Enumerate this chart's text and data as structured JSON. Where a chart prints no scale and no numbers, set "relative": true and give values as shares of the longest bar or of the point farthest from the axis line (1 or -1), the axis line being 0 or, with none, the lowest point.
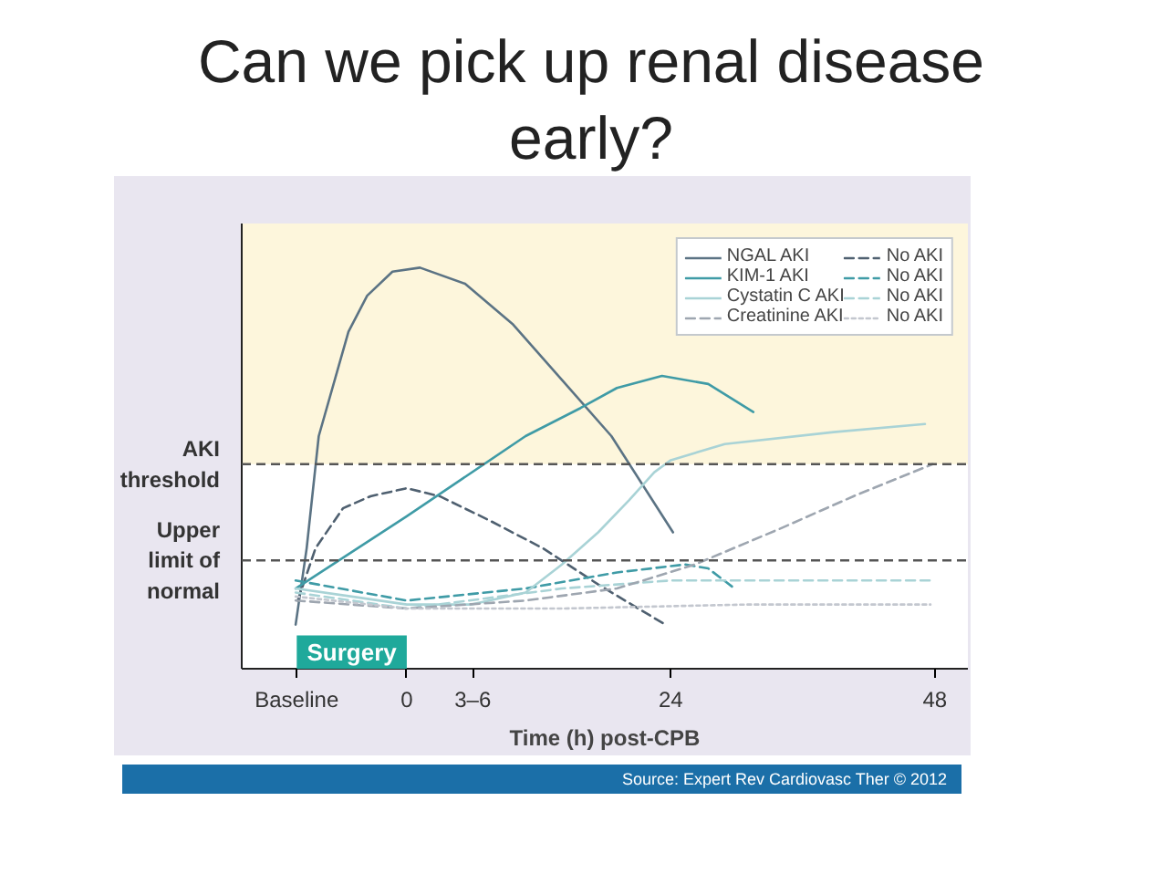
{
  "chart_data": {
    "type": "line",
    "title": "Can we pick up renal disease early?",
    "xlabel": "Time (h) post-CPB",
    "relative": true,
    "xlim": [
      -15,
      51
    ],
    "xticks": [
      {
        "value": -10,
        "label": "Baseline"
      },
      0,
      {
        "value": 6,
        "label": "3–6"
      },
      24,
      48
    ],
    "legend": "top right",
    "series": [
      {
        "name": "NGAL AKI",
        "color": "#5b7384",
        "line_style": "solid",
        "x": [
          -10.1,
          -9.1,
          -8,
          -5.3,
          -3.6,
          -1.3,
          1.2,
          5.3,
          9.6,
          14.1,
          18.6,
          24.2
        ],
        "values": [
          0.11,
          0.3,
          0.58,
          0.84,
          0.93,
          0.99,
          1,
          0.96,
          0.86,
          0.72,
          0.58,
          0.34
        ]
      },
      {
        "name": "No AKI",
        "color": "#4f6070",
        "line_style": "dashed",
        "x": [
          -9.9,
          -8.3,
          -5.8,
          -3.3,
          0,
          3,
          7.5,
          12.4,
          17.4,
          23.5
        ],
        "values": [
          0.17,
          0.3,
          0.4,
          0.43,
          0.45,
          0.43,
          0.37,
          0.3,
          0.21,
          0.11
        ]
      },
      {
        "name": "KIM-1 AKI",
        "color": "#3f9ba6",
        "line_style": "solid",
        "x": [
          -10.1,
          0,
          10.8,
          15.8,
          19.1,
          23.2,
          27.4,
          31.5
        ],
        "values": [
          0.2,
          0.38,
          0.58,
          0.65,
          0.7,
          0.73,
          0.71,
          0.64
        ]
      },
      {
        "name": "No AKI",
        "color": "#3f9ba6",
        "line_style": "dashed",
        "x": [
          -10.1,
          0,
          10.8,
          19.1,
          25.3,
          27.4,
          29.8
        ],
        "values": [
          0.22,
          0.17,
          0.2,
          0.24,
          0.26,
          0.25,
          0.2
        ]
      },
      {
        "name": "Cystatin C AKI",
        "color": "#a9d3d6",
        "line_style": "solid",
        "x": [
          -10.1,
          -5,
          0,
          5.8,
          10.8,
          14.1,
          17.4,
          20.2,
          22.5,
          24,
          28.9,
          38.8,
          47.1
        ],
        "values": [
          0.2,
          0.18,
          0.16,
          0.16,
          0.19,
          0.26,
          0.34,
          0.42,
          0.49,
          0.52,
          0.56,
          0.59,
          0.61
        ]
      },
      {
        "name": "No AKI",
        "color": "#a9d3d6",
        "line_style": "dashed",
        "x": [
          -10.1,
          0,
          14.1,
          24,
          47.8
        ],
        "values": [
          0.19,
          0.15,
          0.2,
          0.22,
          0.22
        ]
      },
      {
        "name": "Creatinine AKI",
        "color": "#9ea6b0",
        "line_style": "dashed",
        "x": [
          -10.1,
          0,
          10.8,
          19.1,
          26.2,
          34,
          40.6,
          47.8
        ],
        "values": [
          0.17,
          0.15,
          0.17,
          0.2,
          0.26,
          0.35,
          0.43,
          0.51
        ]
      },
      {
        "name": "No AKI",
        "color": "#c3c7cf",
        "line_style": "dotted",
        "x": [
          -10.1,
          0,
          14.1,
          30.7,
          47.6
        ],
        "values": [
          0.18,
          0.15,
          0.15,
          0.16,
          0.16
        ]
      }
    ],
    "ref_lines": [
      {
        "axis": "y",
        "value": 0.51,
        "label": "AKI threshold",
        "color": "#555555",
        "line_style": "dashed"
      },
      {
        "axis": "y",
        "value": 0.27,
        "label": "Upper limit of normal",
        "color": "#555555",
        "line_style": "dashed"
      }
    ],
    "bands": [
      {
        "axis": "y",
        "from": 0.51,
        "to": 1.11,
        "color": "#fdf6dc"
      },
      {
        "axis": "x",
        "from": -10,
        "to": 0,
        "label": "Surgery",
        "color": "#1fa99b"
      }
    ],
    "annotations": [
      "Source: Expert Rev Cardiovasc Ther © 2012"
    ]
  }
}
